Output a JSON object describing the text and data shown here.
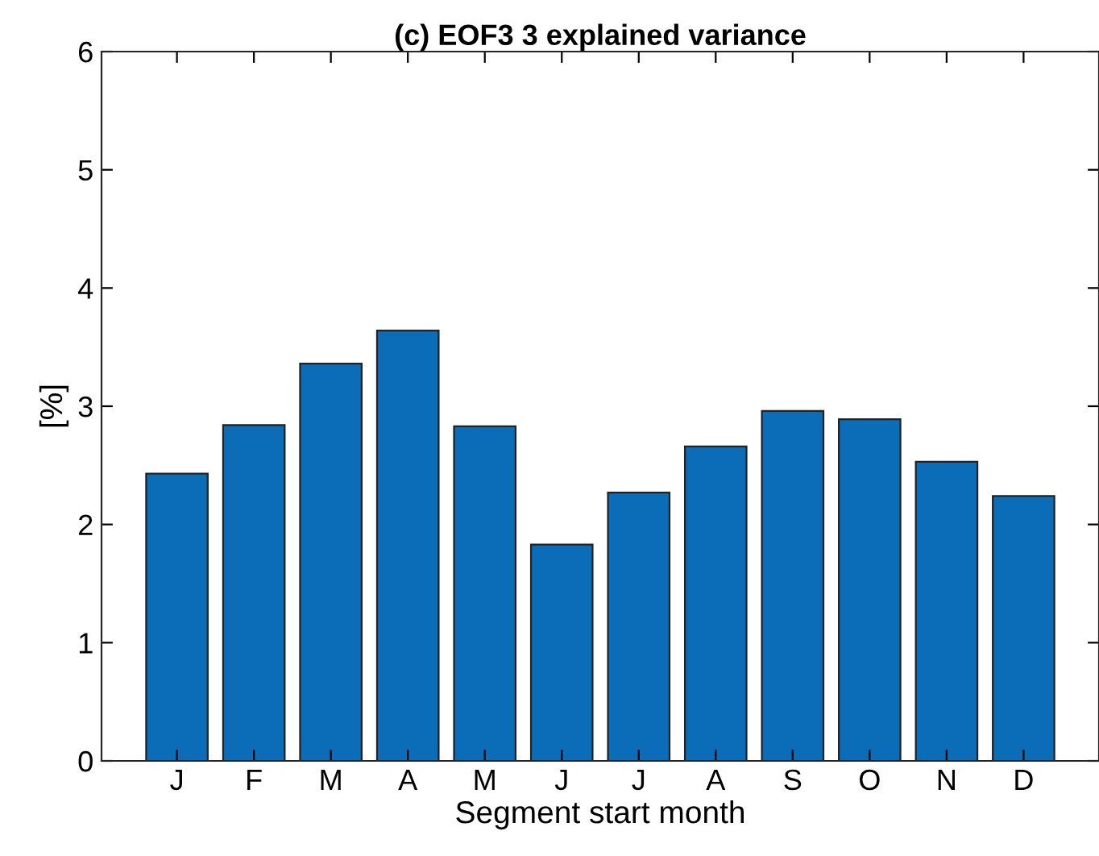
{
  "chart_data": {
    "type": "bar",
    "title": "(c) EOF3 3 explained variance",
    "xlabel": "Segment start month",
    "ylabel": "[%]",
    "categories": [
      "J",
      "F",
      "M",
      "A",
      "M",
      "J",
      "J",
      "A",
      "S",
      "O",
      "N",
      "D"
    ],
    "values": [
      2.43,
      2.84,
      3.36,
      3.64,
      2.83,
      1.83,
      2.27,
      2.66,
      2.96,
      2.89,
      2.53,
      2.24
    ],
    "color": "#0b6cb8",
    "ylim": [
      0,
      6
    ],
    "yticks": [
      0,
      1,
      2,
      3,
      4,
      5,
      6
    ],
    "grid": false
  }
}
